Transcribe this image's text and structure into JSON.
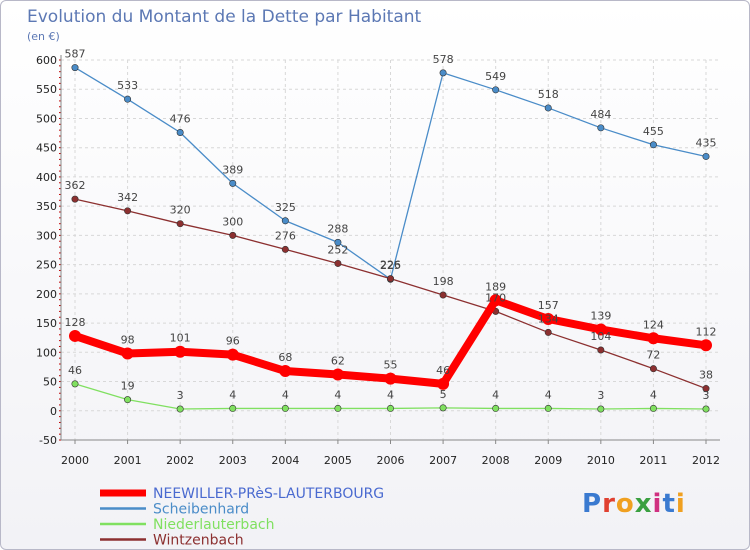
{
  "chart_data": {
    "type": "line",
    "title": "Evolution du Montant de la Dette par Habitant",
    "subtitle": "(en €)",
    "categories": [
      "2000",
      "2001",
      "2002",
      "2003",
      "2004",
      "2005",
      "2006",
      "2007",
      "2008",
      "2009",
      "2010",
      "2011",
      "2012"
    ],
    "ylim": [
      -50,
      600
    ],
    "yticks": [
      -50,
      0,
      50,
      100,
      150,
      200,
      250,
      300,
      350,
      400,
      450,
      500,
      550,
      600
    ],
    "series": [
      {
        "name": "NEEWILLER-PRèS-LAUTERBOURG",
        "color": "#ff0000",
        "labelColor": "#444444",
        "values": [
          128,
          98,
          101,
          96,
          68,
          62,
          55,
          46,
          189,
          157,
          139,
          124,
          112
        ]
      },
      {
        "name": "Scheibenhard",
        "color": "#4a8cc8",
        "labelColor": "#444444",
        "values": [
          587,
          533,
          476,
          389,
          325,
          288,
          225,
          578,
          549,
          518,
          484,
          455,
          435
        ]
      },
      {
        "name": "Niederlauterbach",
        "color": "#80e060",
        "labelColor": "#444444",
        "values": [
          46,
          19,
          3,
          4,
          4,
          4,
          4,
          5,
          4,
          4,
          3,
          4,
          3
        ]
      },
      {
        "name": "Wintzenbach",
        "color": "#8c3030",
        "labelColor": "#444444",
        "values": [
          362,
          342,
          320,
          300,
          276,
          252,
          226,
          198,
          170,
          134,
          104,
          72,
          38
        ]
      }
    ],
    "grid": true,
    "legend": "bottom-left"
  },
  "logo": {
    "text": "Proxiti"
  }
}
